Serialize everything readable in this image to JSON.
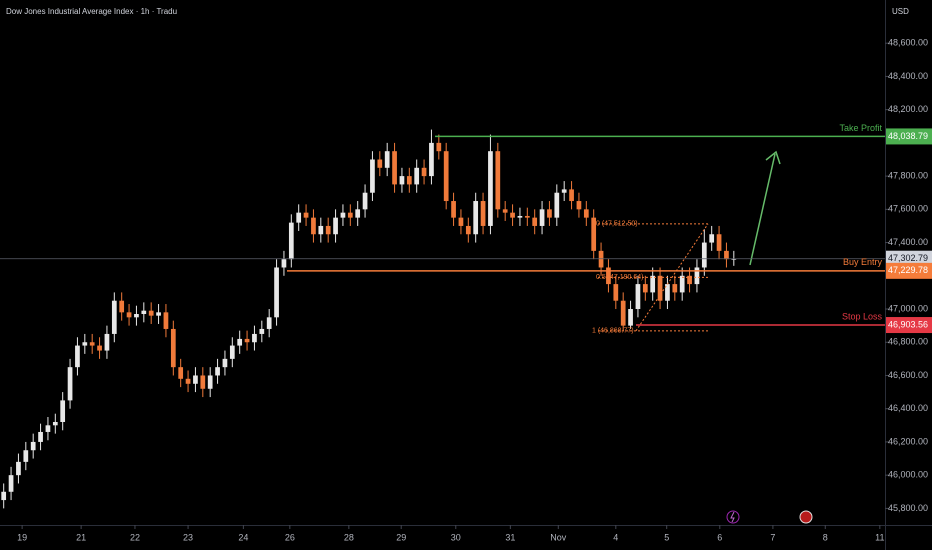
{
  "chart_data": {
    "type": "candlestick",
    "title": "Dow Jones Industrial Average Index · 1h · Tradu",
    "currency": "USD",
    "up_color": "#e8e8e8",
    "down_color": "#f07a3a",
    "xlim": [
      0,
      120
    ],
    "xticks": [
      {
        "value": 3.0,
        "label": "19"
      },
      {
        "value": 11.0,
        "label": "21"
      },
      {
        "value": 18.3,
        "label": "22"
      },
      {
        "value": 25.5,
        "label": "23"
      },
      {
        "value": 33.0,
        "label": "24"
      },
      {
        "value": 39.3,
        "label": "26"
      },
      {
        "value": 47.3,
        "label": "28"
      },
      {
        "value": 54.4,
        "label": "29"
      },
      {
        "value": 61.8,
        "label": "30"
      },
      {
        "value": 69.2,
        "label": "31"
      },
      {
        "value": 75.7,
        "label": "Nov"
      },
      {
        "value": 83.5,
        "label": "4"
      },
      {
        "value": 90.4,
        "label": "5"
      },
      {
        "value": 97.6,
        "label": "6"
      },
      {
        "value": 104.8,
        "label": "7"
      },
      {
        "value": 111.9,
        "label": "8"
      },
      {
        "value": 119.3,
        "label": "11"
      }
    ],
    "ylim": [
      45700,
      48860
    ],
    "yticks": [
      {
        "value": 45800,
        "label": "45,800.00"
      },
      {
        "value": 46000,
        "label": "46,000.00"
      },
      {
        "value": 46200,
        "label": "46,200.00"
      },
      {
        "value": 46400,
        "label": "46,400.00"
      },
      {
        "value": 46600,
        "label": "46,600.00"
      },
      {
        "value": 46800,
        "label": "46,800.00"
      },
      {
        "value": 47000,
        "label": "47,000.00"
      },
      {
        "value": 47400,
        "label": "47,400.00"
      },
      {
        "value": 47600,
        "label": "47,600.00"
      },
      {
        "value": 47800,
        "label": "47,800.00"
      },
      {
        "value": 48200,
        "label": "48,200.00"
      },
      {
        "value": 48400,
        "label": "48,400.00"
      },
      {
        "value": 48600,
        "label": "48,600.00"
      }
    ],
    "candles": [
      [
        45850,
        45950,
        45800,
        45900
      ],
      [
        45900,
        46050,
        45850,
        46000
      ],
      [
        46000,
        46130,
        45950,
        46080
      ],
      [
        46080,
        46200,
        46030,
        46150
      ],
      [
        46150,
        46250,
        46100,
        46200
      ],
      [
        46200,
        46310,
        46150,
        46260
      ],
      [
        46260,
        46350,
        46210,
        46300
      ],
      [
        46300,
        46370,
        46250,
        46320
      ],
      [
        46320,
        46500,
        46270,
        46450
      ],
      [
        46450,
        46700,
        46400,
        46650
      ],
      [
        46650,
        46830,
        46600,
        46780
      ],
      [
        46780,
        46850,
        46730,
        46800
      ],
      [
        46800,
        46850,
        46730,
        46780
      ],
      [
        46780,
        46830,
        46700,
        46750
      ],
      [
        46750,
        46900,
        46700,
        46850
      ],
      [
        46850,
        47100,
        46800,
        47050
      ],
      [
        47050,
        47100,
        46930,
        46980
      ],
      [
        46980,
        47030,
        46900,
        46950
      ],
      [
        46950,
        47020,
        46900,
        46970
      ],
      [
        46970,
        47040,
        46920,
        46990
      ],
      [
        46990,
        47040,
        46910,
        46960
      ],
      [
        46960,
        47030,
        46910,
        46980
      ],
      [
        46980,
        47030,
        46830,
        46880
      ],
      [
        46880,
        46930,
        46600,
        46650
      ],
      [
        46650,
        46700,
        46530,
        46580
      ],
      [
        46580,
        46630,
        46500,
        46550
      ],
      [
        46550,
        46650,
        46500,
        46600
      ],
      [
        46600,
        46650,
        46470,
        46520
      ],
      [
        46520,
        46650,
        46470,
        46600
      ],
      [
        46600,
        46700,
        46550,
        46650
      ],
      [
        46650,
        46750,
        46600,
        46700
      ],
      [
        46700,
        46830,
        46650,
        46780
      ],
      [
        46780,
        46870,
        46730,
        46820
      ],
      [
        46820,
        46870,
        46750,
        46800
      ],
      [
        46800,
        46900,
        46750,
        46850
      ],
      [
        46850,
        46930,
        46800,
        46880
      ],
      [
        46880,
        47000,
        46830,
        46950
      ],
      [
        46950,
        47300,
        46900,
        47250
      ],
      [
        47250,
        47350,
        47200,
        47300
      ],
      [
        47300,
        47570,
        47250,
        47520
      ],
      [
        47520,
        47630,
        47470,
        47580
      ],
      [
        47580,
        47630,
        47500,
        47550
      ],
      [
        47550,
        47600,
        47400,
        47450
      ],
      [
        47450,
        47550,
        47400,
        47500
      ],
      [
        47500,
        47550,
        47400,
        47450
      ],
      [
        47450,
        47600,
        47400,
        47550
      ],
      [
        47550,
        47630,
        47500,
        47580
      ],
      [
        47580,
        47630,
        47500,
        47550
      ],
      [
        47550,
        47650,
        47500,
        47600
      ],
      [
        47600,
        47750,
        47550,
        47700
      ],
      [
        47700,
        47950,
        47650,
        47900
      ],
      [
        47900,
        47950,
        47800,
        47850
      ],
      [
        47850,
        48000,
        47800,
        47950
      ],
      [
        47950,
        48000,
        47700,
        47750
      ],
      [
        47750,
        47850,
        47700,
        47800
      ],
      [
        47800,
        47850,
        47700,
        47750
      ],
      [
        47750,
        47900,
        47700,
        47850
      ],
      [
        47850,
        47900,
        47750,
        47800
      ],
      [
        47800,
        48080,
        47750,
        48000
      ],
      [
        48000,
        48050,
        47900,
        47950
      ],
      [
        47950,
        48000,
        47600,
        47650
      ],
      [
        47650,
        47700,
        47500,
        47550
      ],
      [
        47550,
        47600,
        47450,
        47500
      ],
      [
        47500,
        47550,
        47400,
        47450
      ],
      [
        47450,
        47700,
        47400,
        47650
      ],
      [
        47650,
        47700,
        47450,
        47500
      ],
      [
        47500,
        48050,
        47450,
        47950
      ],
      [
        47950,
        48000,
        47550,
        47600
      ],
      [
        47600,
        47650,
        47530,
        47580
      ],
      [
        47580,
        47630,
        47500,
        47550
      ],
      [
        47550,
        47610,
        47500,
        47560
      ],
      [
        47560,
        47610,
        47500,
        47550
      ],
      [
        47550,
        47600,
        47450,
        47500
      ],
      [
        47500,
        47650,
        47450,
        47600
      ],
      [
        47600,
        47650,
        47500,
        47550
      ],
      [
        47550,
        47750,
        47500,
        47700
      ],
      [
        47700,
        47770,
        47650,
        47720
      ],
      [
        47720,
        47770,
        47600,
        47650
      ],
      [
        47650,
        47700,
        47550,
        47600
      ],
      [
        47600,
        47650,
        47500,
        47550
      ],
      [
        47550,
        47600,
        47300,
        47350
      ],
      [
        47350,
        47400,
        47200,
        47250
      ],
      [
        47250,
        47300,
        47100,
        47150
      ],
      [
        47150,
        47200,
        47000,
        47050
      ],
      [
        47050,
        47100,
        46869,
        46900
      ],
      [
        46900,
        47050,
        46880,
        47000
      ],
      [
        47000,
        47200,
        46950,
        47150
      ],
      [
        47150,
        47200,
        47050,
        47100
      ],
      [
        47100,
        47250,
        47050,
        47200
      ],
      [
        47200,
        47250,
        47000,
        47050
      ],
      [
        47050,
        47200,
        47000,
        47150
      ],
      [
        47150,
        47200,
        47050,
        47100
      ],
      [
        47100,
        47250,
        47050,
        47200
      ],
      [
        47200,
        47250,
        47100,
        47150
      ],
      [
        47150,
        47300,
        47100,
        47250
      ],
      [
        47250,
        47480,
        47200,
        47400
      ],
      [
        47400,
        47500,
        47350,
        47450
      ],
      [
        47450,
        47500,
        47300,
        47350
      ],
      [
        47350,
        47400,
        47250,
        47300
      ],
      [
        47300,
        47350,
        47260,
        47303
      ]
    ],
    "current_price": {
      "value": 47302.79,
      "label": "47,302.79",
      "color": "#d1d4dc"
    },
    "levels": [
      {
        "name": "Take Profit",
        "value": 48038.79,
        "value_label": "48,038.79",
        "color": "#4caf50"
      },
      {
        "name": "Buy Entry",
        "value": 47229.78,
        "value_label": "47,229.78",
        "color": "#f57c3a"
      },
      {
        "name": "Stop Loss",
        "value": 46903.56,
        "value_label": "46,903.56",
        "color": "#e53945"
      }
    ],
    "fib": [
      {
        "label": "0 (47,512.50)",
        "value": 47512.5
      },
      {
        "label": "0.5 (47,190.64)",
        "value": 47190.64
      },
      {
        "label": "1 (46,868.77)",
        "value": 46868.77
      }
    ]
  }
}
